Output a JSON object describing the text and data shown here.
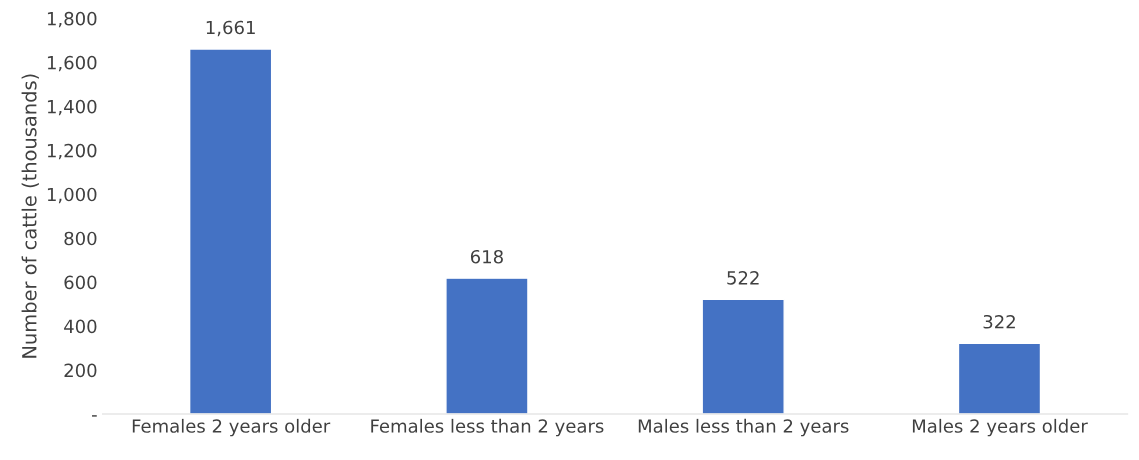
{
  "chart_data": {
    "type": "bar",
    "ylabel": "Number of cattle (thousands)",
    "categories": [
      "Females 2 years older",
      "Females less than 2 years",
      "Males less than 2 years",
      "Males 2 years older"
    ],
    "values": [
      1661,
      618,
      522,
      322
    ],
    "value_labels": [
      "1,661",
      "618",
      "522",
      "322"
    ],
    "color": "#4472c4",
    "ylim": [
      0,
      1800
    ],
    "yticks": [
      {
        "value": 0,
        "label": "-"
      },
      200,
      400,
      600,
      800,
      {
        "value": 1000,
        "label": "1,000"
      },
      {
        "value": 1200,
        "label": "1,200"
      },
      {
        "value": 1400,
        "label": "1,400"
      },
      {
        "value": 1600,
        "label": "1,600"
      },
      {
        "value": 1800,
        "label": "1,800"
      }
    ],
    "grid": false,
    "legend": false
  }
}
